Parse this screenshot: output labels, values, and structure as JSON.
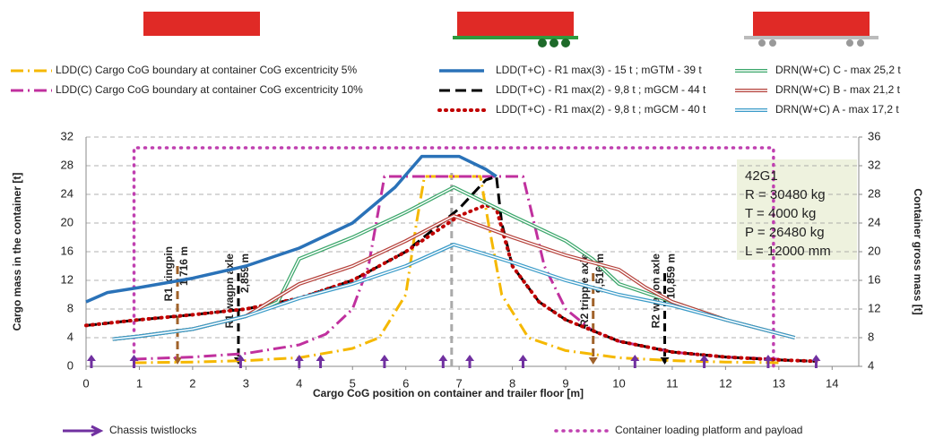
{
  "chart_data": {
    "type": "line",
    "xlabel": "Cargo CoG position on container and trailer floor [m]",
    "ylabel": "Cargo mass in the container [t]",
    "y2label": "Container gross mass [t]",
    "xlim": [
      0,
      14.5
    ],
    "xticks": [
      0,
      1,
      2,
      3,
      4,
      5,
      6,
      7,
      8,
      9,
      10,
      11,
      12,
      13,
      14
    ],
    "ylim": [
      0,
      32
    ],
    "yticks": [
      0,
      4,
      8,
      12,
      16,
      20,
      24,
      28,
      32
    ],
    "y2lim": [
      4,
      36
    ],
    "y2ticks": [
      4,
      8,
      12,
      16,
      20,
      24,
      28,
      32,
      36
    ],
    "grid": true,
    "series": [
      {
        "name": "LDD(C) Cargo CoG boundary at container CoG excentricity 5%",
        "color": "#f5b800",
        "style": "dashdot",
        "x": [
          0.9,
          2,
          3,
          4,
          5,
          5.5,
          6,
          6.2,
          6.35,
          7.4,
          7.55,
          7.8,
          8.3,
          9,
          10,
          11,
          12,
          13
        ],
        "values": [
          0.5,
          0.6,
          0.8,
          1.2,
          2.5,
          4,
          10,
          20,
          26.5,
          26.5,
          20,
          10,
          4,
          2.2,
          1.2,
          0.8,
          0.6,
          0.5
        ]
      },
      {
        "name": "LDD(C) Cargo CoG boundary at container CoG excentricity 10%",
        "color": "#c0309e",
        "style": "dashdot",
        "x": [
          0.9,
          2,
          3,
          4,
          4.5,
          5,
          5.3,
          5.6,
          8.2,
          8.6,
          9,
          9.5,
          10,
          11,
          12,
          13
        ],
        "values": [
          1,
          1.3,
          1.8,
          3,
          4.5,
          8,
          14,
          26.5,
          26.5,
          14,
          8,
          5,
          3.5,
          2,
          1.3,
          1
        ]
      },
      {
        "name": "LDD(T+C) - R1 max(3) - 15 t ; mGTM - 39 t",
        "color": "#2a72b8",
        "style": "solid",
        "x": [
          0,
          0.4,
          1,
          2,
          3,
          4,
          5,
          5.8,
          6.3,
          7,
          7.5,
          7.7
        ],
        "values": [
          9,
          10.3,
          11,
          12.3,
          14,
          16.5,
          20,
          25,
          29.3,
          29.3,
          27.5,
          26.5
        ]
      },
      {
        "name": "LDD(T+C) - R1 max(2) - 9,8 t ; mGCM - 44 t",
        "color": "#000000",
        "style": "dashed",
        "x": [
          0,
          1,
          2,
          3,
          4,
          5,
          6,
          6.5,
          7,
          7.5,
          7.7,
          7.8,
          8,
          8.5,
          9,
          10,
          11,
          12,
          13,
          13.7
        ],
        "values": [
          5.7,
          6.5,
          7.2,
          8,
          9.5,
          12,
          16,
          19,
          22,
          26,
          26.5,
          20,
          14,
          9,
          6.5,
          3.5,
          2,
          1.3,
          0.9,
          0.7
        ]
      },
      {
        "name": "LDD(T+C) - R1 max(2) - 9,8 t ; mGCM - 40 t",
        "color": "#c00000",
        "style": "dotted",
        "x": [
          0,
          1,
          2,
          3,
          4,
          5,
          6,
          6.5,
          7,
          7.5,
          7.7,
          7.85,
          8,
          8.5,
          9,
          10,
          11,
          12,
          13,
          13.7
        ],
        "values": [
          5.7,
          6.5,
          7.2,
          8,
          9.5,
          12,
          16,
          18.5,
          21,
          22.5,
          22,
          18,
          14,
          9,
          6.5,
          3.5,
          2,
          1.3,
          0.9,
          0.7
        ]
      },
      {
        "name": "DRN(W+C) C - max 25,2 t",
        "color": "#3aa66a",
        "style": "double",
        "x": [
          0.5,
          1,
          2,
          3,
          3.6,
          4,
          5,
          6,
          6.9,
          8,
          9,
          9.5,
          10,
          11,
          12,
          13.3
        ],
        "values": [
          3.8,
          4.2,
          5.2,
          7,
          9,
          15,
          18,
          21.5,
          25,
          21,
          17.5,
          15,
          11.5,
          9,
          6.5,
          4
        ]
      },
      {
        "name": "DRN(W+C) B - max 21,2 t",
        "color": "#b5403a",
        "style": "double",
        "x": [
          0.5,
          1,
          2,
          3,
          4,
          5,
          6,
          6.9,
          8,
          9,
          10,
          10.5,
          11,
          12,
          13.3
        ],
        "values": [
          3.8,
          4.2,
          5.2,
          7,
          11.5,
          14,
          17.5,
          21,
          18,
          15.5,
          13.5,
          11,
          9,
          6.5,
          4
        ]
      },
      {
        "name": "DRN(W+C) A - max 17,2 t",
        "color": "#3a9bc8",
        "style": "double",
        "x": [
          0.5,
          1,
          2,
          3,
          4,
          5,
          6,
          6.9,
          8,
          9,
          10,
          11,
          12,
          13.3
        ],
        "values": [
          3.8,
          4.2,
          5.2,
          7,
          9.5,
          11.5,
          14,
          17,
          14.5,
          12,
          10,
          8.5,
          6.5,
          4
        ]
      }
    ],
    "markers": [
      {
        "label": "R1 kingpin",
        "sublabel": "1,716 m",
        "x": 1.716,
        "top": 14,
        "color": "#a0622a"
      },
      {
        "label": "R1 wagpn axle",
        "sublabel": "2,859 m",
        "x": 2.859,
        "top": 13,
        "color": "#000000"
      },
      {
        "label": "R2 tripple axle",
        "sublabel": "9,516 m",
        "x": 9.516,
        "top": 13,
        "color": "#a0622a"
      },
      {
        "label": "R2 wagon axle",
        "sublabel": "10,859 m",
        "x": 10.859,
        "top": 13,
        "color": "#000000"
      }
    ],
    "center_line": {
      "x": 6.86,
      "top": 27,
      "color": "#aaaaaa"
    },
    "platform": {
      "name": "Container loading platform and payload",
      "color": "#c040b0",
      "x": [
        0.9,
        0.9,
        12.9,
        12.9
      ],
      "values": [
        0,
        30.5,
        30.5,
        0
      ]
    },
    "twistlocks": {
      "name": "Chassis twistlocks",
      "color": "#7030a0",
      "x": [
        0.1,
        0.9,
        2.9,
        4.0,
        4.4,
        5.6,
        6.7,
        7.2,
        8.2,
        10.3,
        11.6,
        12.8,
        13.7
      ]
    },
    "annotation": [
      "42G1",
      "R = 30480 kg",
      "T = 4000 kg",
      "P = 26480 kg",
      "L = 12000 mm"
    ]
  }
}
